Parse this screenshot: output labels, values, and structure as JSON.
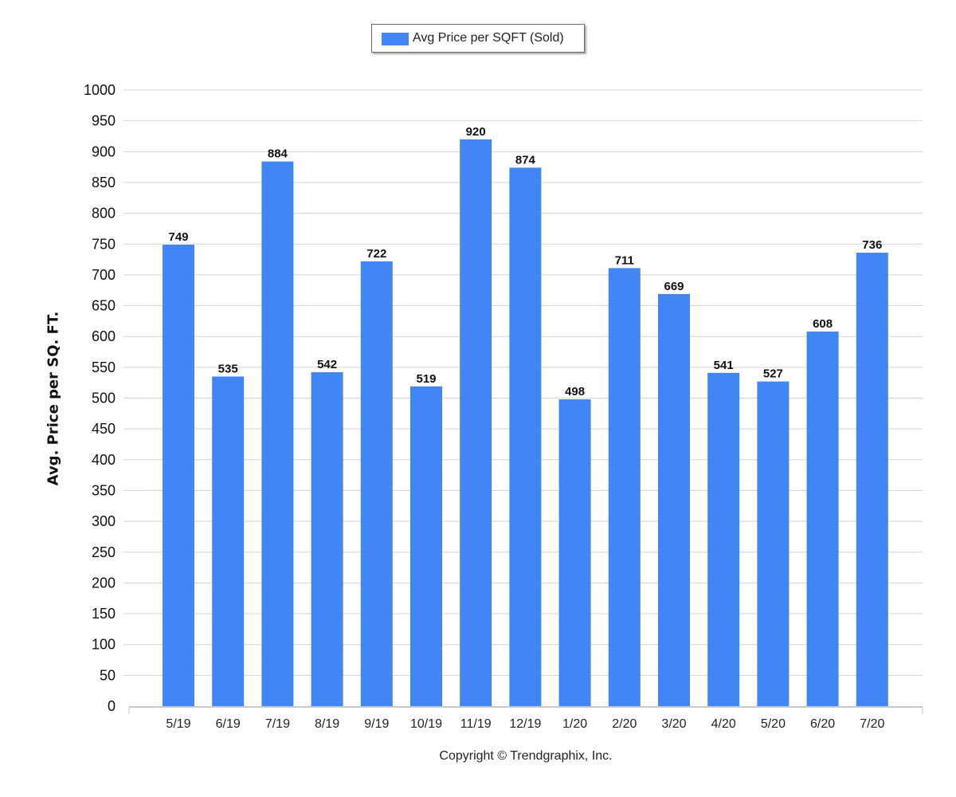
{
  "chart_data": {
    "type": "bar",
    "categories": [
      "5/19",
      "6/19",
      "7/19",
      "8/19",
      "9/19",
      "10/19",
      "11/19",
      "12/19",
      "1/20",
      "2/20",
      "3/20",
      "4/20",
      "5/20",
      "6/20",
      "7/20"
    ],
    "series": [
      {
        "name": "Avg Price per SQFT (Sold)",
        "values": [
          749,
          535,
          884,
          542,
          722,
          519,
          920,
          874,
          498,
          711,
          669,
          541,
          527,
          608,
          736
        ]
      }
    ],
    "title": "",
    "xlabel": "",
    "ylabel": "Avg. Price per SQ. FT.",
    "ylim": [
      0,
      1000
    ],
    "ytick_step": 50,
    "grid": true,
    "legend": "top-center",
    "bar_color": "#4285f4"
  },
  "footer": {
    "copyright": "Copyright © Trendgraphix, Inc."
  }
}
